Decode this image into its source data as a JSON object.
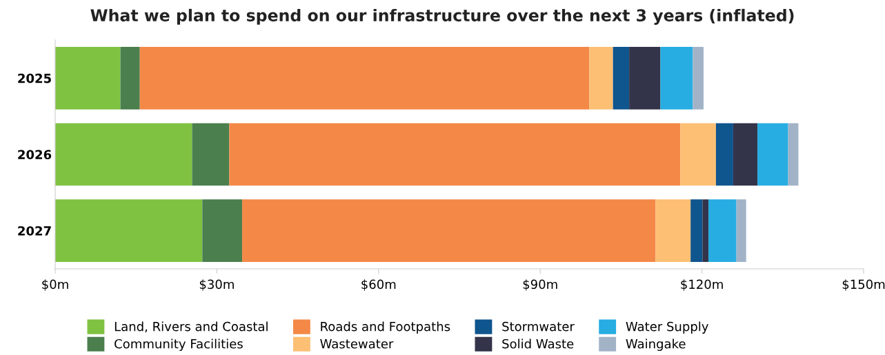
{
  "chart_data": {
    "type": "bar",
    "title": "What we plan to spend on our infrastructure over the next 3 years (inflated)",
    "orientation": "horizontal",
    "stacked": true,
    "categories": [
      "2025",
      "2026",
      "2027"
    ],
    "series": [
      {
        "name": "Land, Rivers and Coastal",
        "color": "#7fc241",
        "values": [
          12.1,
          25.4,
          27.3
        ]
      },
      {
        "name": "Community Facilities",
        "color": "#4b7f4e",
        "values": [
          3.6,
          6.9,
          7.4
        ]
      },
      {
        "name": "Roads and Footpaths",
        "color": "#f48847",
        "values": [
          83.4,
          83.7,
          76.7
        ]
      },
      {
        "name": "Wastewater",
        "color": "#fcbf74",
        "values": [
          4.4,
          6.6,
          6.5
        ]
      },
      {
        "name": "Stormwater",
        "color": "#0f558e",
        "values": [
          3.0,
          3.2,
          2.2
        ]
      },
      {
        "name": "Solid Waste",
        "color": "#33344a",
        "values": [
          5.8,
          4.5,
          1.1
        ]
      },
      {
        "name": "Water Supply",
        "color": "#27ade2",
        "values": [
          6.0,
          5.7,
          5.2
        ]
      },
      {
        "name": "Waingake",
        "color": "#a2b3c8",
        "values": [
          2.0,
          1.9,
          1.8
        ]
      }
    ],
    "xlim": [
      0,
      150
    ],
    "xticks": [
      {
        "value": 0,
        "label": "$0m"
      },
      {
        "value": 30,
        "label": "$30m"
      },
      {
        "value": 60,
        "label": "$60m"
      },
      {
        "value": 90,
        "label": "$90m"
      },
      {
        "value": 120,
        "label": "$120m"
      },
      {
        "value": 150,
        "label": "$150m"
      }
    ],
    "grid": false,
    "legend": "bottom"
  }
}
